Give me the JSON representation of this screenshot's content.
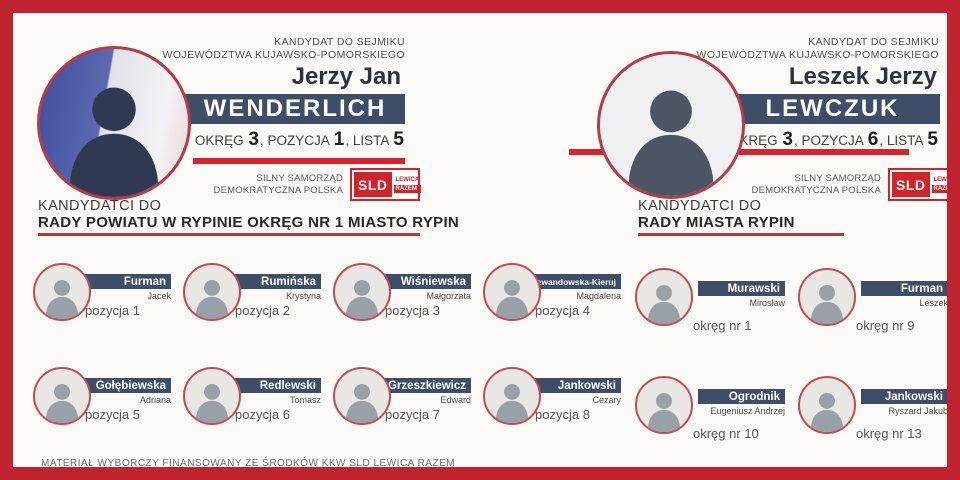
{
  "heroes": {
    "left": {
      "eyebrow1": "KANDYDAT DO SEJMIKU",
      "eyebrow2": "WOJEWÓDZTWA KUJAWSKO-POMORSKIEGO",
      "first_names": "Jerzy Jan",
      "surname": "WENDERLICH",
      "details": {
        "l1": "OKRĘG",
        "v1": "3",
        "l2": ", POZYCJA",
        "v2": "1",
        "l3": ", LISTA",
        "v3": "5"
      },
      "slogan1": "SILNY SAMORZĄD",
      "slogan2": "DEMOKRATYCZNA POLSKA"
    },
    "right": {
      "eyebrow1": "KANDYDAT DO SEJMIKU",
      "eyebrow2": "WOJEWÓDZTWA KUJAWSKO-POMORSKIEGO",
      "first_names": "Leszek Jerzy",
      "surname": "LEWCZUK",
      "details": {
        "l1": "OKRĘG",
        "v1": "3",
        "l2": ", POZYCJA",
        "v2": "6",
        "l3": ", LISTA",
        "v3": "5"
      },
      "slogan1": "SILNY SAMORZĄD",
      "slogan2": "DEMOKRATYCZNA POLSKA"
    }
  },
  "logo": {
    "sld": "SLD",
    "lewica": "LEWICA",
    "razem": "RAZEM"
  },
  "sections": {
    "left": {
      "title1": "KANDYDATCI DO",
      "title2": "RADY POWIATU W RYPINIE OKRĘG NR 1 MIASTO RYPIN",
      "candidates": [
        {
          "surname": "Furman",
          "first_name": "Jacek",
          "label": "pozycja 1"
        },
        {
          "surname": "Rumińska",
          "first_name": "Krystyna",
          "label": "pozycja 2"
        },
        {
          "surname": "Wiśniewska",
          "first_name": "Małgorzata",
          "label": "pozycja 3"
        },
        {
          "surname": "Lewandowska-Kieruj",
          "first_name": "Magdalena",
          "label": "pozycja 4"
        },
        {
          "surname": "Gołębiewska",
          "first_name": "Adriana",
          "label": "pozycja 5"
        },
        {
          "surname": "Redlewski",
          "first_name": "Tomasz",
          "label": "pozycja 6"
        },
        {
          "surname": "Grzeszkiewicz",
          "first_name": "Edward",
          "label": "pozycja 7"
        },
        {
          "surname": "Jankowski",
          "first_name": "Cezary",
          "label": "pozycja 8"
        }
      ]
    },
    "right": {
      "title1": "KANDYDATCI DO",
      "title2": "RADY MIASTA RYPIN",
      "candidates": [
        {
          "surname": "Murawski",
          "first_name": "Mirosław",
          "label": "okręg nr 1"
        },
        {
          "surname": "Furman",
          "first_name": "Leszek",
          "label": "okręg nr 9"
        },
        {
          "surname": "Ogrodnik",
          "first_name": "Eugeniusz Andrzej",
          "label": "okręg nr 10"
        },
        {
          "surname": "Jankowski",
          "first_name": "Ryszard Jakub",
          "label": "okręg nr 13"
        }
      ]
    }
  },
  "footer": {
    "disclaimer": "MATERIAŁ WYBORCZY FINANSOWANY ZE ŚRODKÓW KKW SLD LEWICA RAZEM"
  },
  "colors": {
    "accent_red": "#d8232e",
    "navy": "#3f4e68",
    "border_red": "#bf232e",
    "logo_red": "#d2232a",
    "ring_red": "#b63a4a"
  }
}
